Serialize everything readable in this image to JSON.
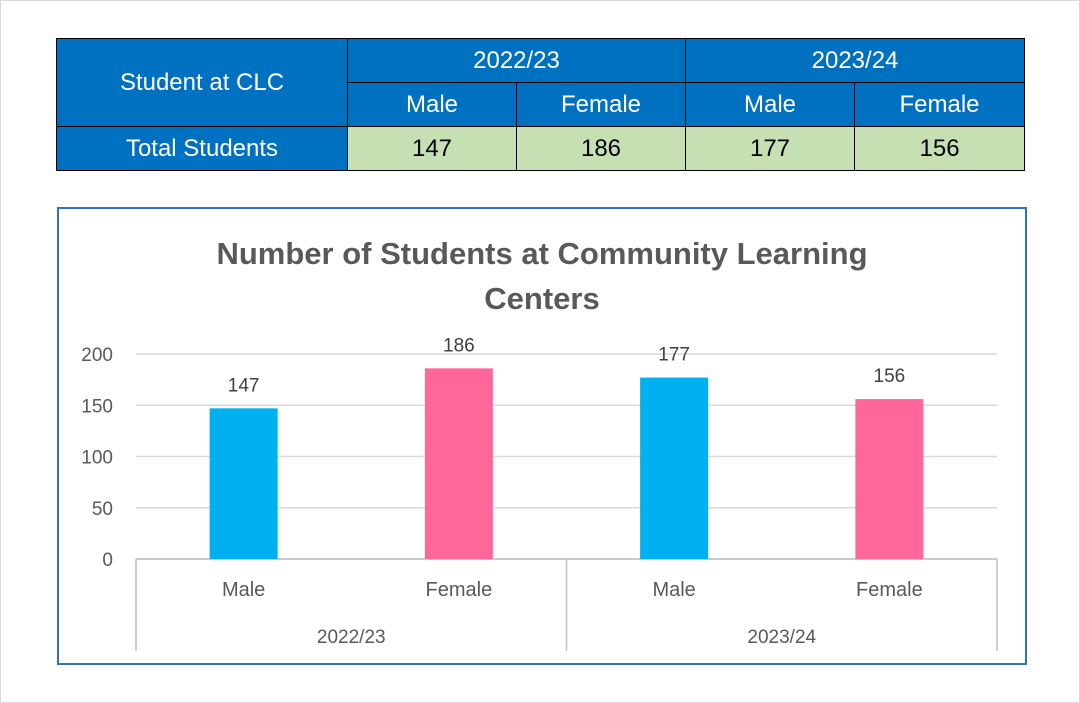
{
  "table": {
    "row_header": "Student at CLC",
    "years": [
      "2022/23",
      "2023/24"
    ],
    "genders": [
      "Male",
      "Female",
      "Male",
      "Female"
    ],
    "total_label": "Total Students",
    "totals": [
      "147",
      "186",
      "177",
      "156"
    ]
  },
  "chart_data": {
    "type": "bar",
    "title_lines": [
      "Number of Students at Community Learning",
      "Centers"
    ],
    "groups": [
      "2022/23",
      "2023/24"
    ],
    "categories": [
      "Male",
      "Female",
      "Male",
      "Female"
    ],
    "values": [
      147,
      186,
      177,
      156
    ],
    "bar_colors": [
      "#00b0f0",
      "#ff6699",
      "#00b0f0",
      "#ff6699"
    ],
    "ylim": [
      0,
      200
    ],
    "yticks": [
      0,
      50,
      100,
      150,
      200
    ],
    "grid": true,
    "data_labels": true
  }
}
